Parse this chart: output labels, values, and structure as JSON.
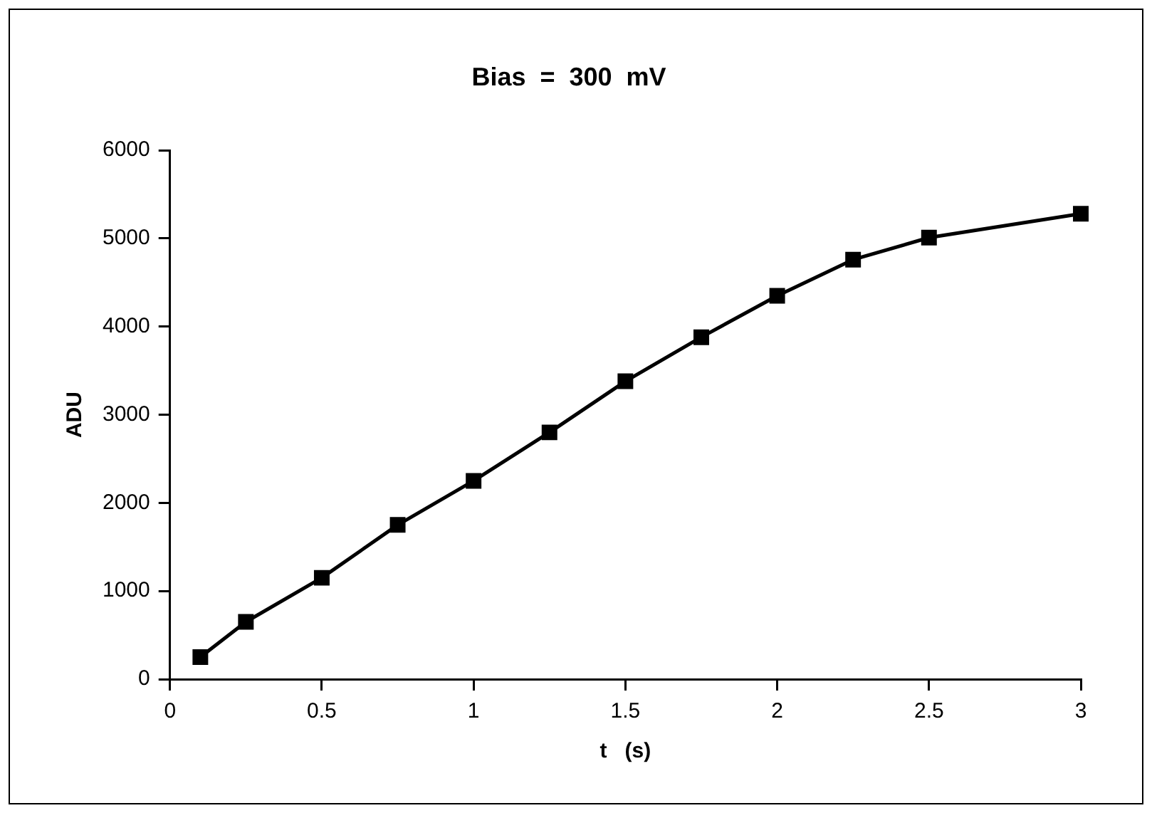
{
  "chart_data": {
    "type": "line",
    "title": "Bias  =  300  mV",
    "xlabel": "t   (s)",
    "ylabel": "ADU",
    "x": [
      0.1,
      0.25,
      0.5,
      0.75,
      1,
      1.25,
      1.5,
      1.75,
      2,
      2.25,
      2.5,
      3
    ],
    "series": [
      {
        "color": "#000000",
        "values": [
          250,
          650,
          1150,
          1750,
          2250,
          2800,
          3380,
          3880,
          4350,
          4760,
          5010,
          5280
        ]
      }
    ],
    "xlim": [
      0,
      3
    ],
    "xticks": [
      0,
      0.5,
      1,
      1.5,
      2,
      2.5,
      3
    ],
    "ylim": [
      0,
      6000
    ],
    "yticks": [
      0,
      1000,
      2000,
      3000,
      4000,
      5000,
      6000
    ],
    "grid": false,
    "legend": false,
    "marker": "square",
    "line_style": "solid"
  }
}
